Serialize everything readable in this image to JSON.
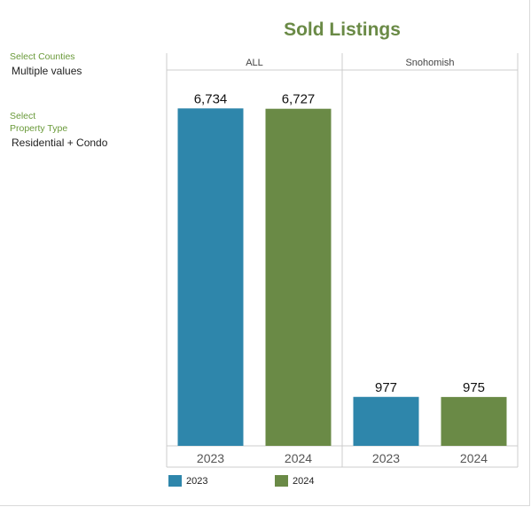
{
  "filters": {
    "counties": {
      "label": "Select Counties",
      "value": "Multiple values"
    },
    "property_type": {
      "label_line1": "Select",
      "label_line2": "Property Type",
      "value": "Residential + Condo"
    }
  },
  "colors": {
    "series_2023": "#2e86ab",
    "series_2024": "#6a8a46",
    "title": "#6a8a46",
    "filter_label": "#6a9a3a",
    "gridline": "#cccccc"
  },
  "chart_data": {
    "type": "bar",
    "title": "Sold Listings",
    "panels": [
      {
        "name": "ALL",
        "categories": [
          "2023",
          "2024"
        ],
        "values": [
          6734,
          6727
        ],
        "labels": [
          "6,734",
          "6,727"
        ]
      },
      {
        "name": "Snohomish",
        "categories": [
          "2023",
          "2024"
        ],
        "values": [
          977,
          975
        ],
        "labels": [
          "977",
          "975"
        ]
      }
    ],
    "series": [
      {
        "name": "2023",
        "color": "#2e86ab"
      },
      {
        "name": "2024",
        "color": "#6a8a46"
      }
    ],
    "ylim": [
      0,
      7500
    ],
    "xlabel": "",
    "ylabel": "",
    "legend": "bottom",
    "grid": false
  }
}
